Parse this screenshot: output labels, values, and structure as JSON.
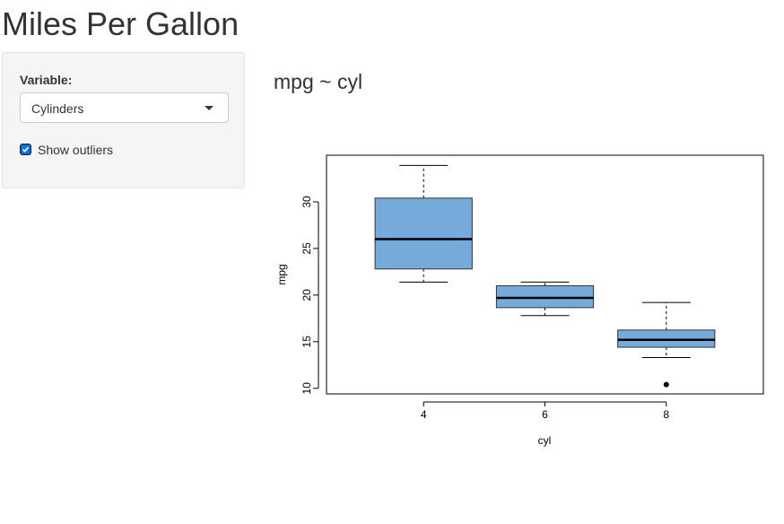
{
  "app": {
    "title": "Miles Per Gallon"
  },
  "sidebar": {
    "variable_label": "Variable:",
    "select_value": "Cylinders",
    "show_outliers_label": "Show outliers",
    "show_outliers_checked": true
  },
  "main": {
    "caption": "mpg ~ cyl"
  },
  "colors": {
    "box_fill": "#75aadb",
    "box_stroke": "#333333",
    "median": "#000000"
  },
  "chart_data": {
    "type": "box",
    "title": "",
    "xlabel": "cyl",
    "ylabel": "mpg",
    "categories": [
      "4",
      "6",
      "8"
    ],
    "y_ticks": [
      10,
      15,
      20,
      25,
      30
    ],
    "ylim": [
      9.4,
      35.0
    ],
    "boxes": [
      {
        "category": "4",
        "whisker_low": 21.4,
        "q1": 22.8,
        "median": 26.0,
        "q3": 30.4,
        "whisker_high": 33.9,
        "outliers": []
      },
      {
        "category": "6",
        "whisker_low": 17.8,
        "q1": 18.65,
        "median": 19.7,
        "q3": 21.0,
        "whisker_high": 21.4,
        "outliers": []
      },
      {
        "category": "8",
        "whisker_low": 13.3,
        "q1": 14.4,
        "median": 15.2,
        "q3": 16.25,
        "whisker_high": 19.2,
        "outliers": [
          10.4
        ]
      }
    ]
  }
}
